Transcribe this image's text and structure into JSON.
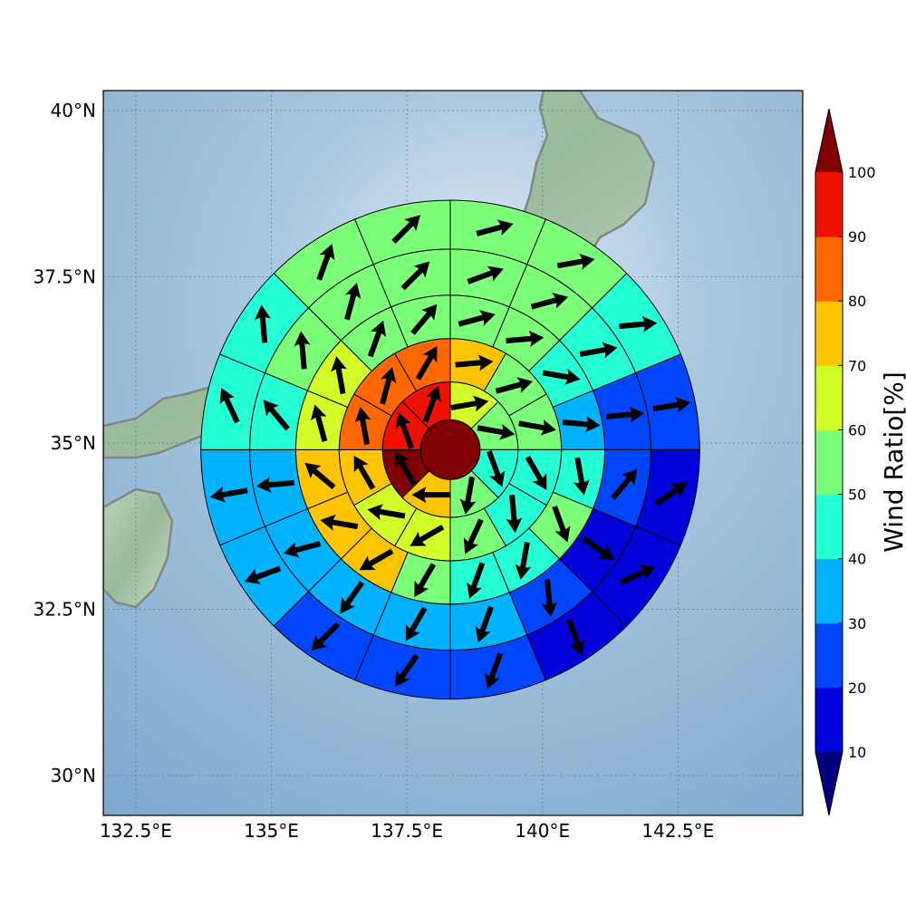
{
  "map": {
    "lon_range": [
      131.9,
      144.8
    ],
    "lat_range": [
      29.4,
      40.3
    ],
    "lon_ticks": [
      {
        "value": 132.5,
        "label": "132.5°E"
      },
      {
        "value": 135.0,
        "label": "135°E"
      },
      {
        "value": 137.5,
        "label": "137.5°E"
      },
      {
        "value": 140.0,
        "label": "140°E"
      },
      {
        "value": 142.5,
        "label": "142.5°E"
      }
    ],
    "lat_ticks": [
      {
        "value": 30.0,
        "label": "30°N"
      },
      {
        "value": 32.5,
        "label": "32.5°N"
      },
      {
        "value": 35.0,
        "label": "35°N"
      },
      {
        "value": 37.5,
        "label": "37.5°N"
      },
      {
        "value": 40.0,
        "label": "40°N"
      }
    ],
    "grid": true
  },
  "colorbar": {
    "label": "Wind Ratio[%]",
    "levels": [
      10,
      20,
      30,
      40,
      50,
      60,
      70,
      80,
      90,
      100
    ],
    "colors": [
      "#0000d8",
      "#0046ff",
      "#00b2ff",
      "#26ffd4",
      "#7cff79",
      "#d2ff2a",
      "#ffc400",
      "#ff6800",
      "#ee1100"
    ],
    "under_color": "#00007f",
    "over_color": "#7f0000",
    "extend": "both"
  },
  "chart_data": {
    "type": "polar-sector",
    "center": {
      "lon": 138.3,
      "lat": 34.9
    },
    "n_rings": 5,
    "sectors_per_ring": [
      1,
      8,
      12,
      16,
      16
    ],
    "ring_outer_radius_deg": [
      0.55,
      1.25,
      2.05,
      2.85,
      4.6
    ],
    "ring_values": [
      [
        105
      ],
      [
        62,
        55,
        45,
        55,
        72,
        105,
        95,
        95
      ],
      [
        70,
        55,
        52,
        45,
        45,
        52,
        62,
        68,
        72,
        85,
        85,
        85
      ],
      [
        58,
        55,
        45,
        32,
        42,
        52,
        45,
        42,
        52,
        72,
        72,
        72,
        62,
        62,
        55,
        58
      ],
      [
        55,
        55,
        45,
        25,
        15,
        15,
        25,
        35,
        32,
        28,
        35,
        35,
        42,
        45,
        52,
        55
      ]
    ],
    "ring_arrow_dir": [
      [],
      [
        80,
        100,
        160,
        190,
        270,
        330,
        340,
        20
      ],
      [
        85,
        75,
        100,
        150,
        175,
        205,
        240,
        280,
        330,
        350,
        15,
        30
      ],
      [
        75,
        85,
        100,
        95,
        170,
        160,
        190,
        200,
        210,
        240,
        280,
        310,
        345,
        350,
        20,
        40
      ],
      [
        80,
        75,
        85,
        80,
        60,
        130,
        190,
        200,
        210,
        220,
        250,
        260,
        330,
        355,
        15,
        40
      ]
    ],
    "rings_outer_extra": {
      "ring_outer_radius_deg": [
        3.7,
        4.6
      ],
      "values": [
        [
          58,
          52,
          45,
          28,
          22,
          15,
          22,
          32,
          35,
          30,
          32,
          32,
          45,
          52,
          55,
          58
        ],
        [
          52,
          55,
          45,
          22,
          18,
          15,
          18,
          25,
          28,
          22,
          32,
          35,
          40,
          45,
          52,
          55
        ]
      ],
      "arrow_dir": [
        [
          70,
          75,
          80,
          85,
          40,
          125,
          175,
          200,
          210,
          215,
          255,
          265,
          320,
          355,
          15,
          45
        ],
        [
          75,
          80,
          85,
          80,
          55,
          65,
          160,
          200,
          215,
          225,
          250,
          260,
          335,
          355,
          20,
          45
        ]
      ]
    }
  }
}
